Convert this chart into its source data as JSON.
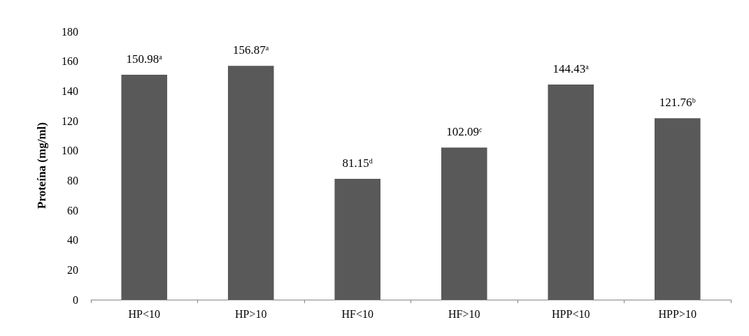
{
  "chart_data": {
    "type": "bar",
    "ylabel": "Proteína (mg/ml)",
    "categories": [
      "HP<10",
      "HP>10",
      "HF<10",
      "HF>10",
      "HPP<10",
      "HPP>10"
    ],
    "values": [
      150.98,
      156.87,
      81.15,
      102.09,
      144.43,
      121.76
    ],
    "value_labels": [
      "150.98ᵃ",
      "156.87ᵃ",
      "81.15ᵈ",
      "102.09ᶜ",
      "144.43ᵃ",
      "121.76ᵇ"
    ],
    "color": "#595959",
    "ylim": [
      0,
      180
    ],
    "yticks": [
      0,
      20,
      40,
      60,
      80,
      100,
      120,
      140,
      160,
      180
    ],
    "grid": false
  }
}
